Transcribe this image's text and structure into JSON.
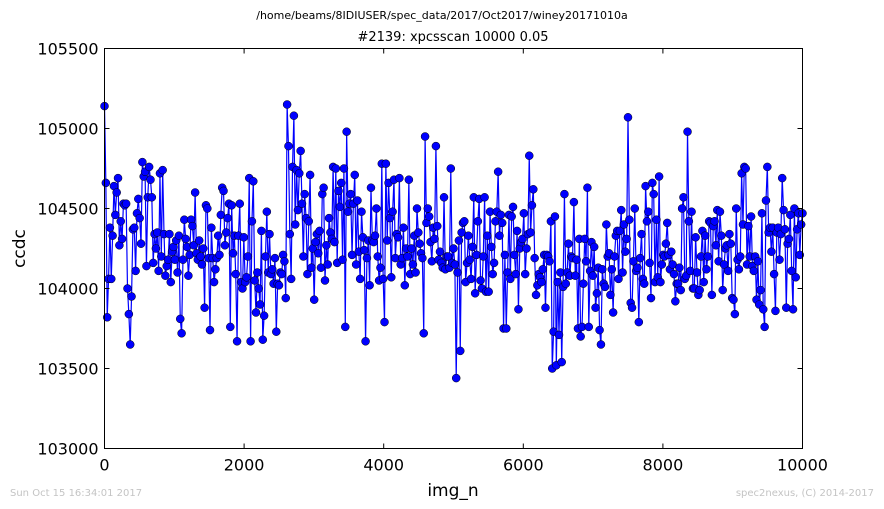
{
  "suptitle": "/home/beams/8IDIUSER/spec_data/2017/Oct2017/winey20171010a",
  "footer": {
    "timestamp": "Sun Oct 15 16:34:01 2017",
    "credit": "spec2nexus, (C) 2014-2017"
  },
  "chart_data": {
    "type": "line",
    "title": "#2139: xpcsscan 10000 0.05",
    "xlabel": "img_n",
    "ylabel": "ccdc",
    "xlim": [
      0,
      10000
    ],
    "ylim": [
      103000,
      105500
    ],
    "xticks": [
      0,
      2000,
      4000,
      6000,
      8000,
      10000
    ],
    "yticks": [
      103000,
      103500,
      104000,
      104500,
      105000,
      105500
    ],
    "grid": false,
    "marker": "circle",
    "colors": {
      "line": "#0000ff",
      "marker_fill": "#0000ff"
    },
    "series": [
      {
        "values": [
          105140,
          104660,
          103820,
          104060,
          104380,
          104060,
          104330,
          104640,
          104460,
          104600,
          104690,
          104270,
          104420,
          104310,
          104530,
          104520,
          104530,
          104000,
          103840,
          103650,
          103950,
          104370,
          104380,
          104110,
          104470,
          104560,
          104440,
          104280,
          104790,
          104700,
          104730,
          104140,
          104570,
          104760,
          104680,
          104570,
          104160,
          104340,
          104250,
          104350,
          104110,
          104720,
          104200,
          104740,
          104340,
          104080,
          104140,
          104180,
          104340,
          104040,
          104230,
          104260,
          104180,
          104300,
          104100,
          104330,
          103810,
          103720,
          104180,
          104430,
          104310,
          104260,
          104080,
          104210,
          104430,
          104390,
          104270,
          104600,
          104220,
          104180,
          104300,
          104200,
          104150,
          104250,
          103880,
          104520,
          104500,
          104190,
          103740,
          104380,
          104190,
          104040,
          104120,
          104190,
          104330,
          104210,
          104460,
          104630,
          104610,
          104270,
          104350,
          104440,
          104530,
          103760,
          104520,
          104220,
          104330,
          104090,
          103670,
          104330,
          104530,
          104040,
          104000,
          104320,
          104040,
          104070,
          104200,
          104690,
          103670,
          104420,
          104670,
          104050,
          103850,
          104100,
          104000,
          103900,
          104360,
          103680,
          103830,
          104200,
          104480,
          104100,
          104340,
          104090,
          104120,
          104030,
          104190,
          103730,
          104030,
          104020,
          104100,
          104090,
          104210,
          104170,
          103940,
          105150,
          104890,
          104340,
          104060,
          104760,
          105080,
          104400,
          104740,
          104490,
          104720,
          104860,
          104530,
          104200,
          104590,
          104440,
          104090,
          104420,
          104710,
          104130,
          104250,
          103930,
          104290,
          104340,
          104220,
          104360,
          104130,
          104590,
          104630,
          104050,
          104270,
          104150,
          104440,
          104350,
          104310,
          104760,
          104290,
          104750,
          104160,
          104610,
          104510,
          104660,
          104180,
          104750,
          103760,
          104980,
          104480,
          104530,
          104590,
          104210,
          104530,
          104710,
          104150,
          104550,
          104230,
          104060,
          104480,
          104320,
          104240,
          103670,
          104190,
          104300,
          104020,
          104630,
          104300,
          104290,
          104330,
          104500,
          104200,
          104050,
          104130,
          104780,
          104060,
          103790,
          104780,
          104300,
          104660,
          104440,
          104070,
          104480,
          104680,
          104190,
          104340,
          104320,
          104690,
          104150,
          104190,
          104380,
          104020,
          104250,
          104200,
          104680,
          104090,
          104250,
          104150,
          104330,
          104100,
          104500,
          104350,
          104280,
          104220,
          104190,
          103720,
          104950,
          104410,
          104500,
          104450,
          104290,
          104170,
          104380,
          104310,
          104890,
          104390,
          104180,
          104230,
          104160,
          104130,
          104570,
          104120,
          104200,
          104200,
          104130,
          104750,
          104160,
          104250,
          104150,
          103440,
          104100,
          104300,
          103610,
          104350,
          104410,
          104420,
          104040,
          104160,
          104330,
          104180,
          104060,
          104260,
          104570,
          103970,
          104210,
          104420,
          104560,
          104050,
          104000,
          104200,
          104570,
          103980,
          104330,
          103980,
          104480,
          104260,
          104090,
          104160,
          104420,
          104480,
          104730,
          104330,
          104460,
          104410,
          103750,
          104210,
          103750,
          104100,
          104460,
          104060,
          104450,
          104510,
          104210,
          104090,
          104360,
          103870,
          104250,
          104290,
          104310,
          104470,
          104090,
          104250,
          104340,
          104830,
          104350,
          104520,
          104620,
          104190,
          103960,
          104020,
          104090,
          104070,
          104040,
          104120,
          104210,
          103880,
          104210,
          104200,
          104170,
          104420,
          103500,
          103730,
          104450,
          103520,
          104040,
          103710,
          104100,
          103540,
          104010,
          104590,
          104030,
          104100,
          104280,
          104080,
          104200,
          104190,
          104540,
          104080,
          104180,
          103750,
          104310,
          103700,
          103760,
          104030,
          104310,
          104170,
          104630,
          103760,
          104110,
          104290,
          104080,
          104260,
          103880,
          103970,
          104130,
          103740,
          103650,
          104120,
          104030,
          104010,
          104400,
          104200,
          104220,
          103960,
          104120,
          103850,
          104200,
          104330,
          104360,
          104060,
          104360,
          104490,
          104100,
          104400,
          104230,
          104310,
          105070,
          104430,
          103910,
          103880,
          104170,
          104500,
          104110,
          104130,
          103790,
          104190,
          104340,
          104060,
          104030,
          104640,
          104420,
          104480,
          104160,
          103940,
          104660,
          104590,
          104040,
          104430,
          104070,
          104700,
          104040,
          104150,
          104210,
          104200,
          104280,
          104410,
          104210,
          104120,
          104230,
          104150,
          104090,
          103920,
          104030,
          104030,
          104130,
          103990,
          104500,
          104570,
          104060,
          104080,
          104980,
          104420,
          104110,
          104480,
          104000,
          104000,
          104320,
          104100,
          103960,
          103990,
          104200,
          104360,
          104040,
          104330,
          104120,
          104200,
          104420,
          104410,
          103960,
          104390,
          104420,
          104270,
          104490,
          104170,
          104480,
          104330,
          103990,
          104150,
          104250,
          104270,
          104110,
          104340,
          104280,
          103940,
          103930,
          103840,
          104500,
          104180,
          104120,
          104200,
          104720,
          104400,
          104760,
          104750,
          104150,
          104390,
          104200,
          104450,
          104140,
          104110,
          104200,
          103930,
          104170,
          103900,
          103990,
          104470,
          103870,
          103760,
          104550,
          104760,
          104350,
          104380,
          104230,
          104380,
          104090,
          103860,
          104350,
          104380,
          104180,
          104340,
          104690,
          104490,
          104370,
          103880,
          104280,
          104310,
          104460,
          104110,
          103870,
          104500,
          104070,
          104370,
          104470,
          104210,
          104400,
          104470
        ]
      }
    ]
  }
}
